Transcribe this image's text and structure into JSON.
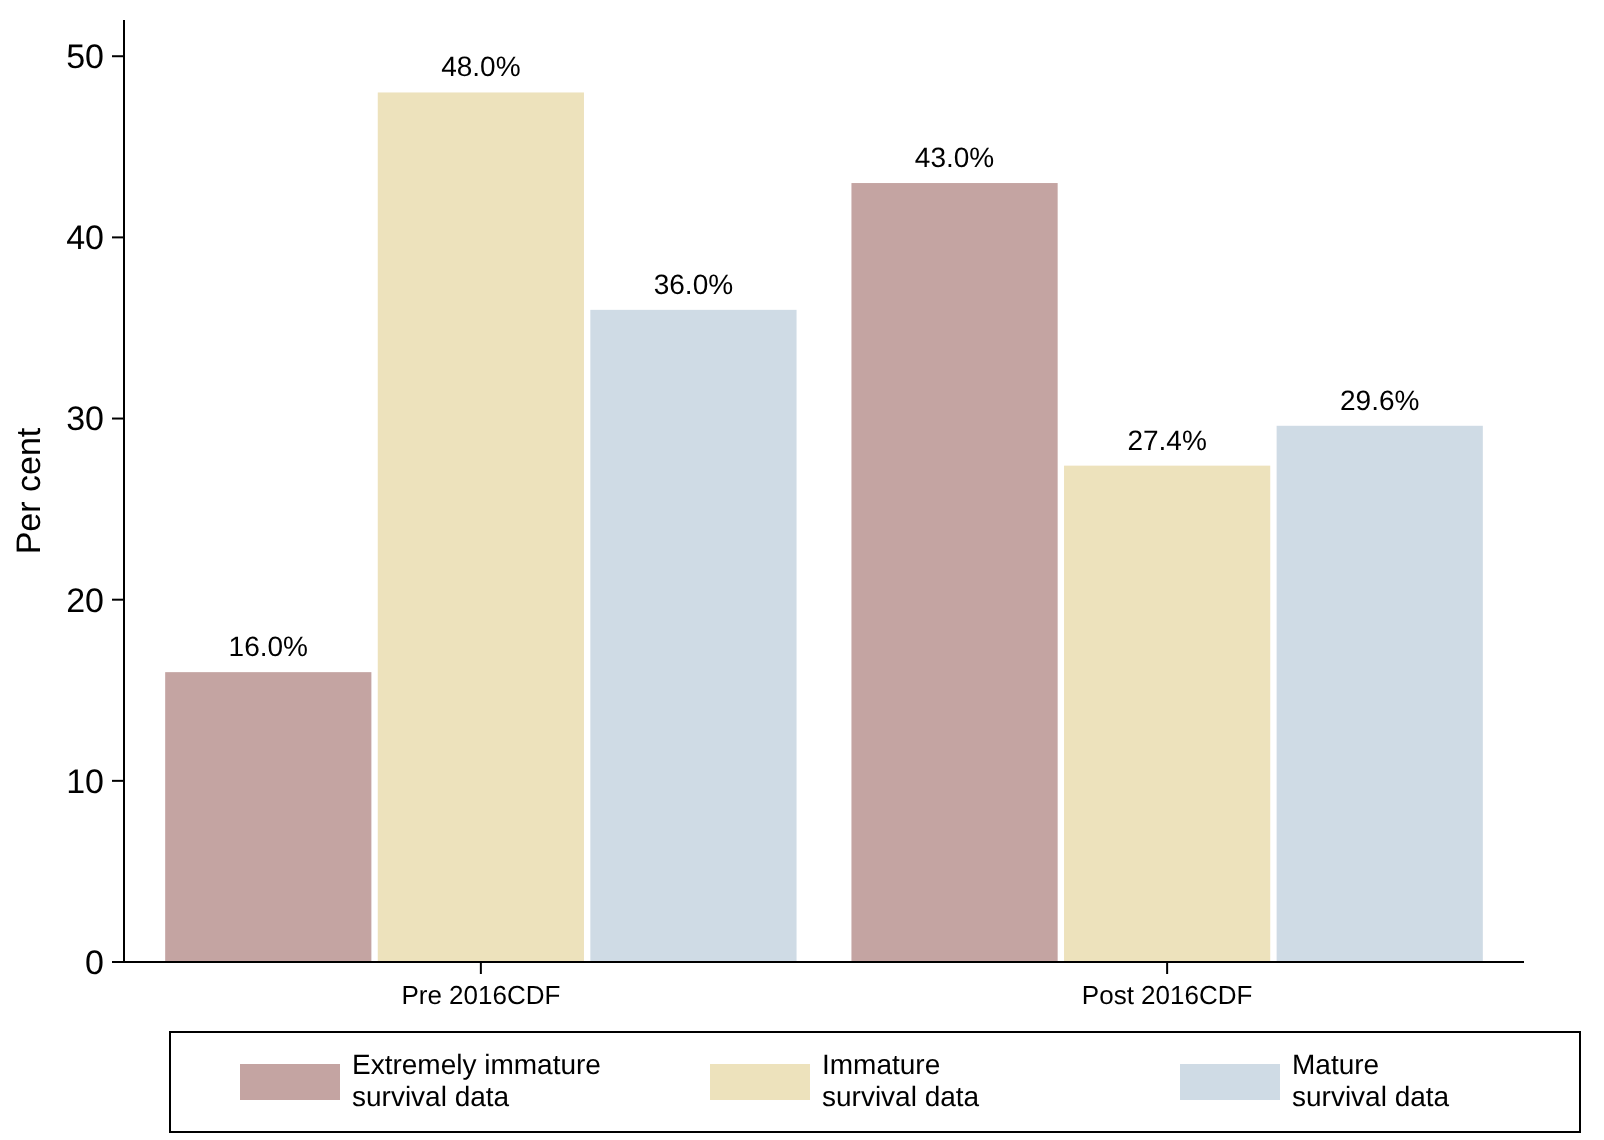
{
  "chart_data": {
    "type": "bar",
    "ylabel": "Per cent",
    "categories": [
      "Pre 2016CDF",
      "Post 2016CDF"
    ],
    "series": [
      {
        "name": "Extremely immature survival data",
        "color": "#c4a4a2",
        "values": [
          16.0,
          43.0
        ],
        "value_labels": [
          "16.0%",
          "43.0%"
        ]
      },
      {
        "name": "Immature survival data",
        "color": "#ede2bc",
        "values": [
          48.0,
          27.4
        ],
        "value_labels": [
          "48.0%",
          "27.4%"
        ]
      },
      {
        "name": "Mature survival data",
        "color": "#cfdbe5",
        "values": [
          36.0,
          29.6
        ],
        "value_labels": [
          "36.0%",
          "29.6%"
        ]
      }
    ],
    "ylim": [
      0,
      52
    ],
    "yticks": [
      0,
      10,
      20,
      30,
      40,
      50
    ],
    "grid": false,
    "legend": "bottom"
  }
}
